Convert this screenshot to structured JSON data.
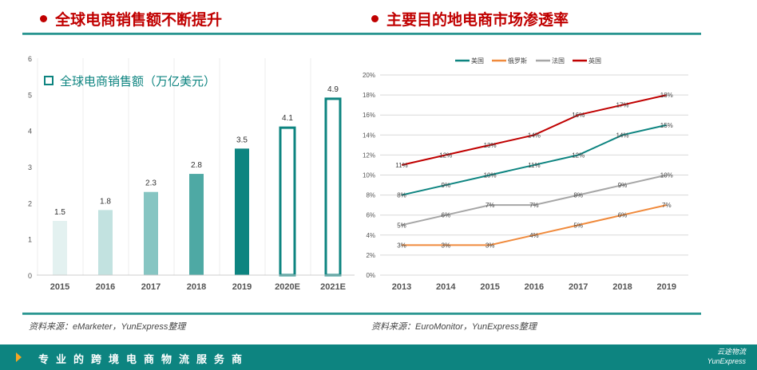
{
  "sections": [
    {
      "title": "全球电商销售额不断提升"
    },
    {
      "title": "主要目的地电商市场渗透率"
    }
  ],
  "sources": [
    "资料来源：eMarketer，YunExpress整理",
    "资料来源：EuroMonitor，YunExpress整理"
  ],
  "footer": {
    "slogan": "专业的跨境电商物流服务商",
    "logo_cn": "云途物流",
    "logo_en": "YunExpress"
  },
  "colors": {
    "accent": "#0d8480",
    "title_red": "#c00000"
  },
  "chart_data": [
    {
      "type": "bar",
      "title": "全球电商销售额（万亿美元）",
      "categories": [
        "2015",
        "2016",
        "2017",
        "2018",
        "2019",
        "2020E",
        "2021E"
      ],
      "values": [
        1.5,
        1.8,
        2.3,
        2.8,
        3.5,
        4.1,
        4.9
      ],
      "data_labels": [
        "1.5",
        "1.8",
        "2.3",
        "2.8",
        "3.5",
        "4.1",
        "4.9"
      ],
      "ylim": [
        0,
        6
      ],
      "yticks": [
        "0",
        "1",
        "2",
        "3",
        "4",
        "5",
        "6"
      ],
      "forecast": [
        "2020E",
        "2021E"
      ],
      "bar_colors": [
        "#e3f1f0",
        "#c2e2e0",
        "#86c5c2",
        "#4ea9a4",
        "#0d8480",
        "#0d8480",
        "#0d8480"
      ]
    },
    {
      "type": "line",
      "categories": [
        "2013",
        "2014",
        "2015",
        "2016",
        "2017",
        "2018",
        "2019"
      ],
      "ylim": [
        0,
        20
      ],
      "yticks": [
        "0%",
        "2%",
        "4%",
        "6%",
        "8%",
        "10%",
        "12%",
        "14%",
        "16%",
        "18%",
        "20%"
      ],
      "legend": "top",
      "grid": true,
      "series": [
        {
          "name": "美国",
          "color": "#0d8480",
          "values": [
            8,
            9,
            10,
            11,
            12,
            14,
            15
          ]
        },
        {
          "name": "俄罗斯",
          "color": "#f08a3c",
          "values": [
            3,
            3,
            3,
            4,
            5,
            6,
            7
          ]
        },
        {
          "name": "法国",
          "color": "#a6a6a6",
          "values": [
            5,
            6,
            7,
            7,
            8,
            9,
            10
          ]
        },
        {
          "name": "英国",
          "color": "#c00000",
          "values": [
            11,
            12,
            13,
            14,
            16,
            17,
            18
          ]
        }
      ]
    }
  ]
}
